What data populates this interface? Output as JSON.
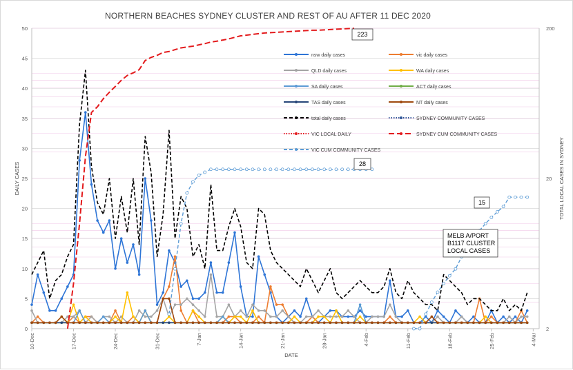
{
  "chart_data": {
    "type": "line",
    "title": "NORTHERN BEACHES SYDNEY CLUSTER AND REST OF AU AFTER 11 DEC 2020",
    "xlabel": "DATE",
    "ylabel": "DAILY CASES",
    "y2label": "TOTAL LOCAL CASES IN SYDNEY",
    "ylim": [
      0,
      50
    ],
    "y2lim": [
      2,
      200
    ],
    "y2scale": "log",
    "y_ticks": [
      "0",
      "5",
      "10",
      "15",
      "20",
      "25",
      "30",
      "35",
      "40",
      "45",
      "50"
    ],
    "y2_ticks": [
      "2",
      "20",
      "200"
    ],
    "x_start": "10-Dec",
    "x_days": 85,
    "x_ticks": [
      "10-Dec",
      "17-Dec",
      "24-Dec",
      "31-Dec",
      "7-Jan",
      "14-Jan",
      "21-Jan",
      "28-Jan",
      "4-Feb",
      "11-Feb",
      "18-Feb",
      "25-Feb",
      "4-Mar"
    ],
    "grid": true,
    "legend_position": "upper-right, inside plot",
    "series": [
      {
        "name": "nsw daily cases",
        "color": "#2E75D6",
        "style": "solid",
        "axis": "left",
        "values": [
          4,
          9,
          6,
          3,
          3,
          5,
          7,
          9,
          28,
          36,
          24,
          18,
          16,
          18,
          10,
          15,
          11,
          14,
          9,
          25,
          18,
          4,
          6,
          13,
          11,
          7,
          8,
          5,
          5,
          6,
          11,
          6,
          6,
          11,
          16,
          7,
          2,
          2,
          12,
          9,
          6,
          2,
          1,
          2,
          3,
          2,
          5,
          2,
          1,
          2,
          3,
          3,
          2,
          2,
          2,
          3,
          2,
          2,
          2,
          2,
          8,
          2,
          2,
          3,
          1,
          1,
          2,
          1,
          3,
          2,
          1,
          3,
          2,
          1,
          2,
          1,
          1,
          3,
          1,
          2,
          1,
          2,
          1,
          3
        ]
      },
      {
        "name": "vic daily cases",
        "color": "#ED7D31",
        "style": "solid",
        "axis": "left",
        "values": [
          1,
          2,
          1,
          1,
          1,
          1,
          1,
          2,
          1,
          2,
          2,
          1,
          1,
          1,
          3,
          1,
          1,
          2,
          1,
          3,
          1,
          1,
          5,
          7,
          12,
          3,
          1,
          3,
          1,
          1,
          1,
          1,
          1,
          2,
          2,
          1,
          1,
          1,
          2,
          1,
          7,
          4,
          4,
          2,
          1,
          1,
          1,
          2,
          1,
          1,
          1,
          1,
          1,
          1,
          1,
          1,
          1,
          1,
          1,
          1,
          2,
          1,
          1,
          1,
          1,
          1,
          1,
          1,
          1,
          1,
          1,
          1,
          1,
          1,
          1,
          5,
          1,
          2,
          1,
          1,
          1,
          1,
          3,
          1
        ]
      },
      {
        "name": "QLD daily cases",
        "color": "#A5A5A5",
        "style": "solid",
        "axis": "left",
        "values": [
          3,
          1,
          1,
          1,
          1,
          1,
          2,
          2,
          3,
          1,
          2,
          1,
          2,
          2,
          1,
          2,
          1,
          1,
          3,
          2,
          2,
          3,
          5,
          2,
          4,
          4,
          5,
          4,
          3,
          2,
          9,
          2,
          2,
          4,
          2,
          3,
          2,
          4,
          3,
          3,
          2,
          2,
          3,
          2,
          1,
          1,
          2,
          2,
          3,
          2,
          2,
          2,
          2,
          3,
          2,
          1,
          1,
          2,
          2,
          2,
          4,
          2,
          1,
          1,
          1,
          1,
          1,
          1,
          2,
          1,
          1,
          1,
          2,
          1,
          1,
          1,
          1,
          1,
          1,
          1,
          2,
          1,
          2,
          2
        ]
      },
      {
        "name": "WA daily cases",
        "color": "#FFC000",
        "style": "solid",
        "axis": "left",
        "values": [
          1,
          1,
          1,
          1,
          1,
          2,
          1,
          4,
          1,
          2,
          1,
          1,
          1,
          1,
          2,
          1,
          6,
          2,
          1,
          3,
          1,
          1,
          1,
          2,
          1,
          1,
          1,
          3,
          2,
          1,
          1,
          1,
          2,
          1,
          2,
          2,
          1,
          3,
          1,
          1,
          1,
          1,
          1,
          1,
          2,
          1,
          1,
          1,
          2,
          2,
          1,
          3,
          1,
          1,
          1,
          2,
          1,
          1,
          1,
          1,
          1,
          1,
          1,
          1,
          1,
          2,
          1,
          1,
          1,
          1,
          1,
          1,
          1,
          1,
          1,
          1,
          2,
          1,
          1,
          1,
          1,
          1,
          1,
          1
        ]
      },
      {
        "name": "SA daily cases",
        "color": "#5B9BD5",
        "style": "solid",
        "axis": "left",
        "values": [
          1,
          1,
          1,
          1,
          1,
          1,
          1,
          1,
          3,
          1,
          1,
          1,
          2,
          1,
          1,
          1,
          1,
          1,
          1,
          3,
          1,
          1,
          1,
          1,
          1,
          1,
          1,
          1,
          1,
          1,
          1,
          1,
          2,
          1,
          1,
          1,
          1,
          1,
          1,
          1,
          1,
          1,
          1,
          1,
          1,
          1,
          1,
          1,
          1,
          1,
          1,
          1,
          1,
          1,
          1,
          4,
          1,
          1,
          1,
          1,
          1,
          1,
          1,
          1,
          1,
          1,
          1,
          1,
          1,
          1,
          1,
          1,
          1,
          1,
          1,
          1,
          1,
          1,
          1,
          1,
          1,
          1,
          1,
          1
        ]
      },
      {
        "name": "ACT daily cases",
        "color": "#70AD47",
        "style": "solid",
        "axis": "left",
        "values": [
          1,
          1,
          1,
          1,
          1,
          1,
          1,
          1,
          1,
          1,
          1,
          1,
          1,
          1,
          1,
          1,
          1,
          1,
          1,
          1,
          1,
          1,
          1,
          1,
          1,
          1,
          1,
          1,
          1,
          1,
          1,
          1,
          1,
          1,
          1,
          1,
          1,
          1,
          1,
          1,
          1,
          1,
          1,
          1,
          1,
          1,
          1,
          1,
          1,
          1,
          1,
          1,
          1,
          1,
          1,
          1,
          1,
          1,
          1,
          1,
          1,
          1,
          1,
          1,
          1,
          1,
          1,
          1,
          1,
          1,
          1,
          1,
          1,
          1,
          1,
          1,
          1,
          1,
          1,
          1,
          1,
          1,
          1,
          1
        ]
      },
      {
        "name": "TAS daily cases",
        "color": "#264478",
        "style": "solid",
        "axis": "left",
        "values": [
          1,
          1,
          1,
          1,
          1,
          1,
          1,
          1,
          1,
          1,
          1,
          1,
          1,
          1,
          1,
          1,
          1,
          1,
          1,
          1,
          1,
          1,
          1,
          1,
          1,
          1,
          1,
          1,
          1,
          1,
          1,
          1,
          1,
          1,
          1,
          1,
          1,
          1,
          1,
          1,
          1,
          1,
          1,
          1,
          1,
          1,
          1,
          1,
          1,
          1,
          1,
          1,
          1,
          1,
          1,
          1,
          1,
          1,
          1,
          1,
          1,
          1,
          1,
          1,
          1,
          1,
          1,
          1,
          1,
          1,
          1,
          1,
          1,
          1,
          1,
          1,
          1,
          1,
          1,
          1,
          1,
          1,
          1,
          1
        ]
      },
      {
        "name": "NT daily cases",
        "color": "#9E480E",
        "style": "solid",
        "axis": "left",
        "values": [
          1,
          1,
          1,
          1,
          1,
          2,
          1,
          1,
          1,
          1,
          1,
          1,
          1,
          1,
          1,
          1,
          1,
          1,
          1,
          1,
          1,
          1,
          5,
          5,
          1,
          1,
          1,
          1,
          1,
          1,
          1,
          1,
          1,
          1,
          1,
          1,
          1,
          1,
          1,
          1,
          1,
          1,
          1,
          1,
          1,
          1,
          1,
          1,
          1,
          1,
          1,
          1,
          1,
          1,
          1,
          1,
          1,
          1,
          1,
          1,
          1,
          1,
          1,
          1,
          1,
          1,
          1,
          2,
          1,
          1,
          1,
          1,
          1,
          1,
          1,
          1,
          1,
          1,
          1,
          1,
          1,
          1,
          1,
          1
        ]
      },
      {
        "name": "total daily cases",
        "color": "#000000",
        "style": "dash",
        "axis": "left",
        "values": [
          9,
          11,
          13,
          5,
          8,
          9,
          12,
          14,
          34,
          43,
          27,
          21,
          19,
          25,
          15,
          22,
          16,
          25,
          14,
          32,
          26,
          12,
          19,
          33,
          15,
          22,
          20,
          12,
          14,
          10,
          24,
          13,
          13,
          17,
          20,
          17,
          11,
          10,
          20,
          19,
          13,
          11,
          10,
          9,
          8,
          7,
          10,
          8,
          6,
          8,
          10,
          6,
          5,
          6,
          7,
          8,
          7,
          6,
          6,
          7,
          10,
          6,
          5,
          8,
          6,
          5,
          4,
          4,
          3,
          9,
          8,
          7,
          6,
          4,
          5,
          5,
          4,
          3,
          3,
          5,
          3,
          4,
          3,
          6
        ]
      },
      {
        "name": "SYDNEY COMMUNITY CASES",
        "color": "#2E5597",
        "style": "dotted-marker",
        "axis": "left",
        "values": [
          null,
          null,
          null,
          null,
          null,
          null,
          null,
          null,
          null,
          null,
          null,
          null,
          null,
          null,
          null,
          null,
          null,
          null,
          null,
          null,
          null,
          null,
          null,
          null,
          null,
          null,
          null,
          null,
          null,
          null,
          null,
          null,
          null,
          null,
          null,
          null,
          null,
          null,
          null,
          null,
          null,
          null,
          null,
          null,
          null,
          null,
          null,
          null,
          null,
          null,
          null,
          null,
          null,
          null,
          null,
          null,
          null,
          null,
          null,
          null,
          null,
          null,
          null,
          null,
          null,
          null,
          null,
          null,
          null,
          null,
          null,
          null,
          null,
          null,
          null,
          null,
          null,
          null,
          null,
          null,
          null,
          null,
          null,
          null
        ]
      },
      {
        "name": "VIC LOCAL DAILY",
        "color": "#E31A1C",
        "style": "dotted",
        "axis": "left",
        "values": [
          null,
          null,
          null,
          null,
          null,
          null,
          null,
          null,
          null,
          null,
          null,
          null,
          null,
          null,
          null,
          null,
          null,
          null,
          null,
          null,
          null,
          null,
          null,
          null,
          null,
          null,
          null,
          null,
          null,
          null,
          null,
          null,
          null,
          null,
          null,
          null,
          null,
          null,
          null,
          null,
          null,
          null,
          null,
          null,
          null,
          null,
          null,
          null,
          null,
          null,
          null,
          null,
          null,
          null,
          null,
          null,
          null,
          null,
          null,
          null,
          null,
          null,
          null,
          null,
          null,
          null,
          null,
          null,
          null,
          null,
          null,
          null,
          null,
          null,
          null,
          null,
          null,
          null,
          null,
          null,
          null,
          null,
          null,
          null
        ]
      },
      {
        "name": "SYDNEY CUM COMMUNITY CASES",
        "color": "#E31A1C",
        "style": "dash-long",
        "axis": "right",
        "values": [
          null,
          null,
          null,
          null,
          null,
          null,
          2,
          4,
          10,
          28,
          55,
          60,
          68,
          75,
          82,
          90,
          97,
          101,
          106,
          122,
          128,
          132,
          138,
          140,
          144,
          148,
          150,
          152,
          155,
          158,
          162,
          164,
          167,
          170,
          174,
          178,
          180,
          182,
          184,
          186,
          187,
          188,
          189,
          190,
          191,
          192,
          193,
          194,
          194,
          195,
          196,
          197,
          198,
          199,
          200
        ]
      },
      {
        "name": "VIC CUM COMMUNITY CASES",
        "color": "#5B9BD5",
        "style": "dash-marker",
        "axis": "right",
        "values": [
          null,
          null,
          null,
          null,
          null,
          null,
          null,
          null,
          null,
          null,
          null,
          null,
          null,
          null,
          null,
          null,
          null,
          null,
          null,
          null,
          null,
          null,
          null,
          2.5,
          5,
          10,
          16,
          19,
          21,
          22,
          23,
          23,
          23,
          23,
          23,
          23,
          23,
          23,
          23,
          23,
          23,
          23,
          23,
          23,
          23,
          23,
          23,
          23,
          23,
          23,
          23,
          23,
          23,
          23,
          23,
          23,
          23,
          23,
          null,
          null,
          null,
          null,
          null,
          null,
          null,
          null,
          null,
          null,
          null,
          null,
          null,
          null,
          null,
          null,
          null,
          null,
          null,
          null,
          null,
          null,
          null,
          null,
          null,
          null
        ]
      },
      {
        "name": "MELB A/PORT B1117 CLUSTER LOCAL CASES",
        "color": "#5B9BD5",
        "style": "dash-marker",
        "axis": "right",
        "values": [
          null,
          null,
          null,
          null,
          null,
          null,
          null,
          null,
          null,
          null,
          null,
          null,
          null,
          null,
          null,
          null,
          null,
          null,
          null,
          null,
          null,
          null,
          null,
          null,
          null,
          null,
          null,
          null,
          null,
          null,
          null,
          null,
          null,
          null,
          null,
          null,
          null,
          null,
          null,
          null,
          null,
          null,
          null,
          null,
          null,
          null,
          null,
          null,
          null,
          null,
          null,
          null,
          null,
          null,
          null,
          null,
          null,
          null,
          null,
          null,
          null,
          null,
          null,
          null,
          2,
          2,
          2.5,
          3,
          3.5,
          4,
          4.5,
          5,
          6,
          7,
          8,
          9,
          10,
          11,
          12,
          13,
          15,
          15,
          15,
          15
        ]
      }
    ],
    "annotations": [
      {
        "text": "223"
      },
      {
        "text": "28"
      },
      {
        "text": "15"
      },
      {
        "text": "MELB A/PORT\nB1117 CLUSTER\nLOCAL CASES"
      }
    ]
  }
}
